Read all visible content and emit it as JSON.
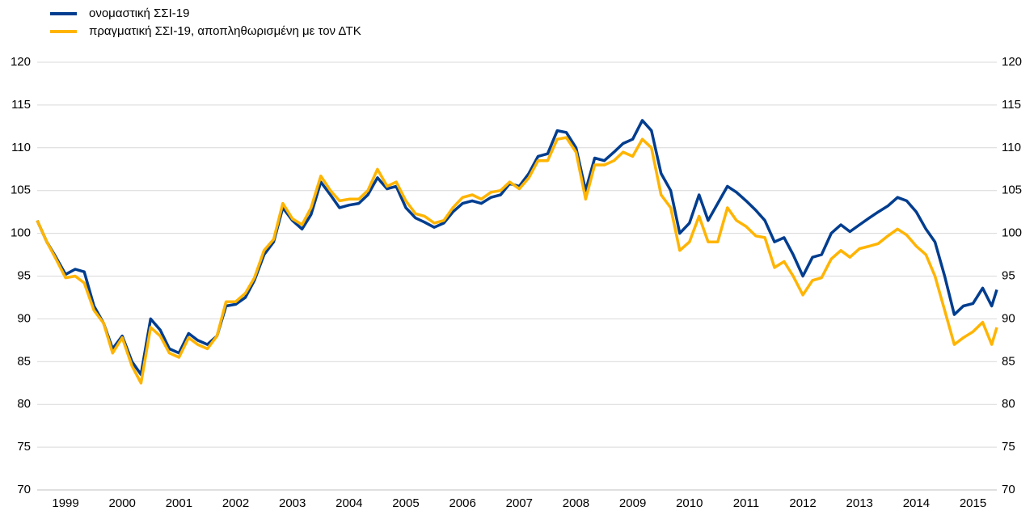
{
  "chart_data": {
    "type": "line",
    "categories": [
      "1999",
      "2000",
      "2001",
      "2002",
      "2003",
      "2004",
      "2005",
      "2006",
      "2007",
      "2008",
      "2009",
      "2010",
      "2011",
      "2012",
      "2013",
      "2014",
      "2015"
    ],
    "x": [
      1999,
      1999.17,
      1999.33,
      1999.5,
      1999.67,
      1999.83,
      2000,
      2000.17,
      2000.33,
      2000.5,
      2000.67,
      2000.83,
      2001,
      2001.17,
      2001.33,
      2001.5,
      2001.67,
      2001.83,
      2002,
      2002.17,
      2002.33,
      2002.5,
      2002.67,
      2002.83,
      2003,
      2003.17,
      2003.33,
      2003.5,
      2003.67,
      2003.83,
      2004,
      2004.17,
      2004.33,
      2004.5,
      2004.67,
      2004.83,
      2005,
      2005.17,
      2005.33,
      2005.5,
      2005.67,
      2005.83,
      2006,
      2006.17,
      2006.33,
      2006.5,
      2006.67,
      2006.83,
      2007,
      2007.17,
      2007.33,
      2007.5,
      2007.67,
      2007.83,
      2008,
      2008.17,
      2008.33,
      2008.5,
      2008.67,
      2008.83,
      2009,
      2009.17,
      2009.33,
      2009.5,
      2009.67,
      2009.83,
      2010,
      2010.17,
      2010.33,
      2010.5,
      2010.67,
      2010.83,
      2011,
      2011.17,
      2011.33,
      2011.5,
      2011.67,
      2011.83,
      2012,
      2012.17,
      2012.33,
      2012.5,
      2012.67,
      2012.83,
      2013,
      2013.17,
      2013.33,
      2013.5,
      2013.67,
      2013.83,
      2014,
      2014.17,
      2014.33,
      2014.5,
      2014.67,
      2014.83,
      2015,
      2015.17,
      2015.33,
      2015.5,
      2015.67,
      2015.83,
      2015.92
    ],
    "xlim": [
      1999,
      2015.92
    ],
    "series": [
      {
        "name": "ονομαστική ΣΣΙ-19",
        "color": "#003d8f",
        "values": [
          101.5,
          99,
          97.2,
          95.2,
          95.8,
          95.5,
          91.5,
          89.5,
          86.5,
          88,
          85,
          83.5,
          90,
          88.7,
          86.5,
          86,
          88.3,
          87.5,
          87,
          88,
          91.5,
          91.7,
          92.5,
          94.5,
          97.5,
          99,
          103,
          101.5,
          100.5,
          102.2,
          106,
          104.5,
          103,
          103.3,
          103.5,
          104.5,
          106.5,
          105.2,
          105.5,
          103,
          101.8,
          101.3,
          100.7,
          101.2,
          102.5,
          103.5,
          103.8,
          103.5,
          104.2,
          104.5,
          105.8,
          105.5,
          107,
          109,
          109.3,
          112,
          111.8,
          110,
          105,
          108.8,
          108.5,
          109.5,
          110.5,
          111,
          113.2,
          112,
          107,
          105,
          100,
          101.2,
          104.5,
          101.5,
          103.5,
          105.5,
          104.8,
          103.8,
          102.7,
          101.5,
          99,
          99.5,
          97.5,
          95,
          97.2,
          97.5,
          100,
          101,
          100.2,
          101,
          101.8,
          102.5,
          103.2,
          104.2,
          103.8,
          102.5,
          100.5,
          99,
          95,
          90.5,
          91.5,
          91.8,
          93.6,
          91.5,
          93.4
        ]
      },
      {
        "name": "πραγματική ΣΣΙ-19, αποπληθωρισμένη με τον ΔΤΚ",
        "color": "#ffb400",
        "values": [
          101.5,
          99,
          97,
          94.8,
          95,
          94.2,
          91,
          89.5,
          86,
          87.8,
          84.5,
          82.5,
          89,
          88,
          86,
          85.5,
          87.8,
          87,
          86.5,
          88,
          92,
          92,
          93,
          94.8,
          98,
          99.3,
          103.5,
          101.7,
          101,
          103,
          106.7,
          105,
          103.8,
          104,
          104,
          105,
          107.5,
          105.5,
          106,
          103.8,
          102.3,
          102,
          101.2,
          101.5,
          103,
          104.2,
          104.5,
          104,
          104.8,
          105,
          106,
          105.2,
          106.5,
          108.5,
          108.5,
          111,
          111.2,
          109.5,
          104,
          108,
          108,
          108.5,
          109.5,
          109,
          111,
          110,
          104.5,
          103,
          98,
          99,
          102,
          99,
          99,
          103,
          101.5,
          100.8,
          99.7,
          99.5,
          96,
          96.7,
          95,
          92.8,
          94.5,
          94.8,
          97,
          98,
          97.2,
          98.2,
          98.5,
          98.8,
          99.7,
          100.5,
          99.8,
          98.5,
          97.5,
          95,
          91,
          87,
          87.8,
          88.5,
          89.6,
          87,
          89
        ]
      }
    ],
    "ylim": [
      70,
      120
    ],
    "yticks": [
      70,
      75,
      80,
      85,
      90,
      95,
      100,
      105,
      110,
      115,
      120
    ],
    "grid": true
  }
}
